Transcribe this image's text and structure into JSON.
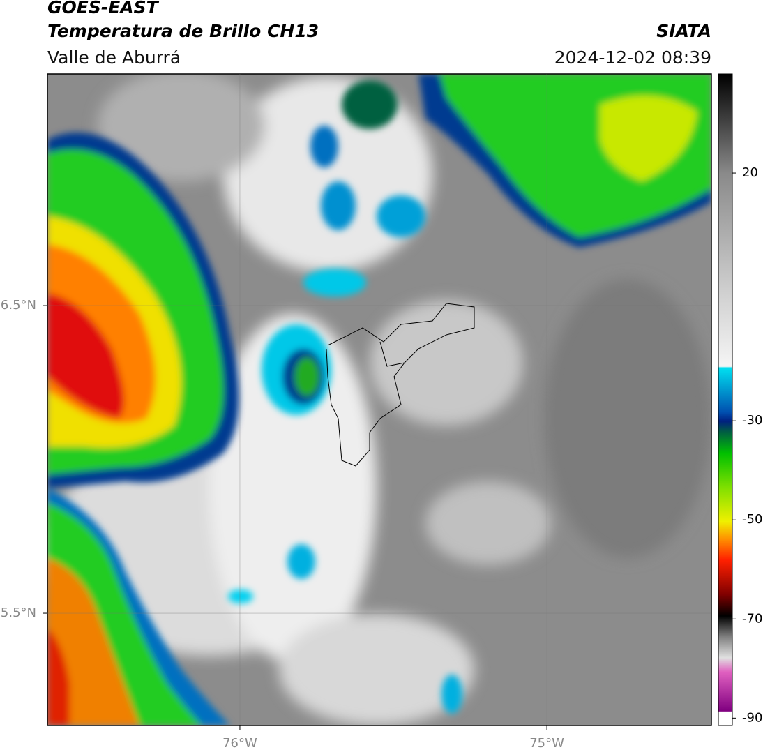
{
  "header": {
    "title": "GOES-EAST",
    "subtitle": "Temperatura de Brillo CH13",
    "region": "Valle de Aburrá",
    "source": "SIATA",
    "timestamp": "2024-12-02 08:39"
  },
  "map": {
    "xlim": [
      -76.627,
      -74.464
    ],
    "ylim": [
      5.135,
      7.253
    ],
    "xticks": [
      {
        "value": -76,
        "label": "76°W"
      },
      {
        "value": -75,
        "label": "75°W"
      }
    ],
    "yticks": [
      {
        "value": 6.5,
        "label": "6.5°N"
      },
      {
        "value": 5.5,
        "label": "5.5°N"
      }
    ]
  },
  "colorbar": {
    "lim": [
      -91.5,
      40
    ],
    "ticks": [
      20,
      -30,
      -50,
      -70,
      -90
    ]
  }
}
